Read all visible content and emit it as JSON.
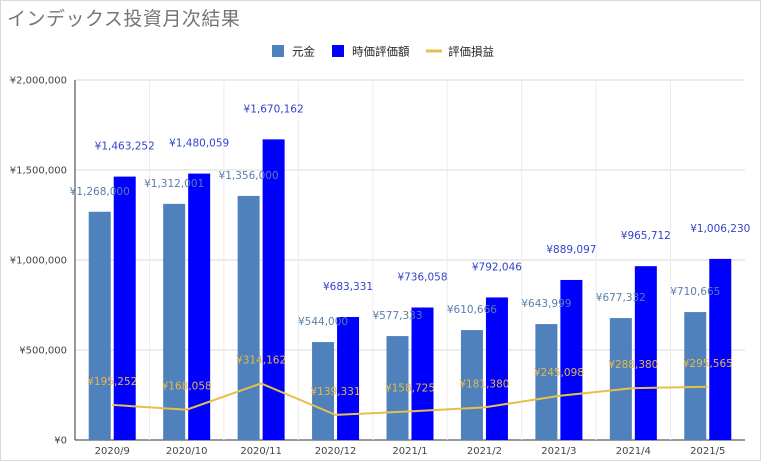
{
  "chart_data": {
    "type": "bar",
    "title": "インデックス投資月次結果",
    "categories": [
      "2020/9",
      "2020/10",
      "2020/11",
      "2020/12",
      "2021/1",
      "2021/2",
      "2021/3",
      "2021/4",
      "2021/5"
    ],
    "series": [
      {
        "name": "元金",
        "kind": "bar",
        "color": "#4f81bd",
        "values": [
          1268000,
          1312001,
          1356000,
          544000,
          577333,
          610666,
          643999,
          677332,
          710665
        ],
        "labels": [
          "¥1,268,000",
          "¥1,312,001",
          "¥1,356,000",
          "¥544,000",
          "¥577,333",
          "¥610,666",
          "¥643,999",
          "¥677,332",
          "¥710,665"
        ]
      },
      {
        "name": "時価評価額",
        "kind": "bar",
        "color": "#0000ff",
        "values": [
          1463252,
          1480059,
          1670162,
          683331,
          736058,
          792046,
          889097,
          965712,
          1006230
        ],
        "labels": [
          "¥1,463,252",
          "¥1,480,059",
          "¥1,670,162",
          "¥683,331",
          "¥736,058",
          "¥792,046",
          "¥889,097",
          "¥965,712",
          "¥1,006,230"
        ]
      },
      {
        "name": "評価損益",
        "kind": "line",
        "color": "#e6c04a",
        "values": [
          195252,
          168058,
          314162,
          139331,
          158725,
          181380,
          245098,
          288380,
          295565
        ],
        "labels": [
          "¥195,252",
          "¥168,058",
          "¥314,162",
          "¥139,331",
          "¥158,725",
          "¥181,380",
          "¥245,098",
          "¥288,380",
          "¥295,565"
        ]
      }
    ],
    "ylim": [
      0,
      2000000
    ],
    "yticks": [
      0,
      500000,
      1000000,
      1500000,
      2000000
    ],
    "ytick_labels": [
      "¥0",
      "¥500,000",
      "¥1,000,000",
      "¥1,500,000",
      "¥2,000,000"
    ],
    "xlabel": "",
    "ylabel": "",
    "legend_position": "top-center",
    "grid": true
  }
}
